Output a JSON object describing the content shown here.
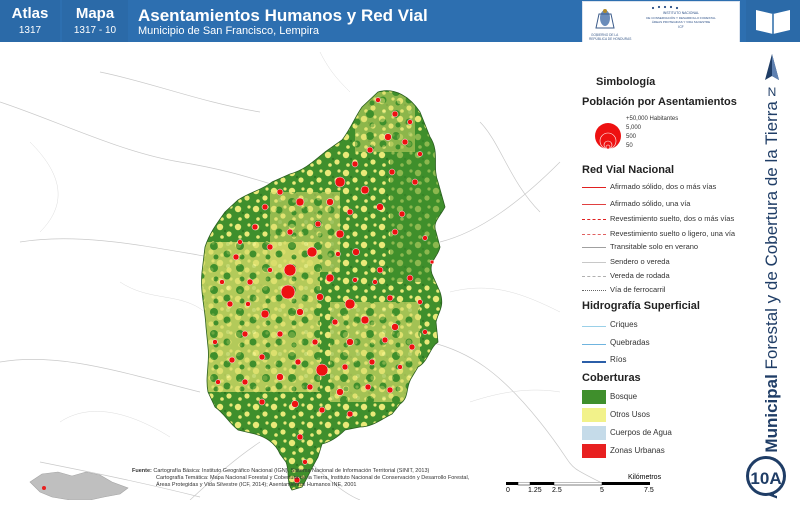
{
  "header": {
    "atlas_label": "Atlas",
    "atlas_number": "1317",
    "map_label": "Mapa",
    "map_number": "1317 - 10",
    "title": "Asentamientos Humanos y Red Vial",
    "subtitle": "Municipio de San Francisco, Lempira",
    "logo_left_text": "GOBIERNO DE LA REPÚBLICA DE HONDURAS",
    "logo_right_text": "INSTITUTO NACIONAL DE CONSERVACIÓN Y DESARROLLO FORESTAL, ÁREAS PROTEGIDAS Y VIDA SILVESTRE ICF"
  },
  "north_label": "N",
  "sidebar_title_bold": "Atlas Municipal",
  "sidebar_title_rest": " Forestal y de Cobertura de la Tierra",
  "badge": "10A",
  "legend": {
    "simbologia": "Simbología",
    "poblacion_title": "Población por Asentamientos",
    "poblacion_sizes": [
      "+50,000 Habitantes",
      "5,000",
      "500",
      "50"
    ],
    "red_vial_title": "Red Vial Nacional",
    "red_vial_items": [
      "Afirmado sólido, dos o más vías",
      "Afirmado sólido, una vía",
      "Revestimiento suelto, dos o más vías",
      "Revestimiento suelto o ligero, una vía",
      "Transitable solo en verano",
      "Sendero o vereda",
      "Vereda de rodada",
      "Vía de ferrocarril"
    ],
    "hidro_title": "Hidrografía Superficial",
    "hidro_items": [
      "Criques",
      "Quebradas",
      "Ríos"
    ],
    "coberturas_title": "Coberturas",
    "coberturas_items": [
      "Bosque",
      "Otros Usos",
      "Cuerpos de Agua",
      "Zonas Urbanas"
    ]
  },
  "colors": {
    "header": "#2b6aa8",
    "bosque": "#3f8f2c",
    "otros_usos": "#f2f28a",
    "agua": "#c5dbe9",
    "urbano": "#e82020",
    "settlement": "#ee1111"
  },
  "source": {
    "label": "Fuente:",
    "line1": "Cartografía Básica: Instituto Geográfico Nacional (IGN), Sistema Nacional de Información Territorial (SINIT, 2013)",
    "line2": "Cartografía Temática: Mapa Nacional Forestal y Cobertura de la Tierra, Instituto Nacional de Conservación y Desarrollo Forestal,",
    "line3": "Áreas Protegidas y Vida Silvestre (ICF, 2014); Asentamientos Humanos INE, 2001"
  },
  "scale": {
    "ticks": [
      "0",
      "1.25",
      "2.5",
      "5",
      "7.5"
    ],
    "unit": "Kilómetros"
  }
}
